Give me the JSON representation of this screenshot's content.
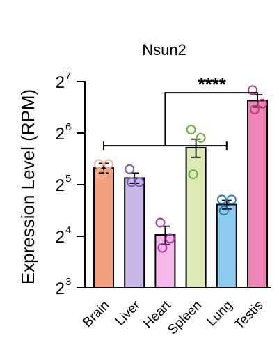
{
  "chart_data": {
    "type": "bar",
    "title": "Nsun2",
    "ylabel": "Expression Level (RPM)",
    "xlabel": "",
    "y_scale": "log2",
    "ylim": [
      8,
      128
    ],
    "y_ticks": [
      {
        "value": 8,
        "base": "2",
        "exp": "3"
      },
      {
        "value": 16,
        "base": "2",
        "exp": "4"
      },
      {
        "value": 32,
        "base": "2",
        "exp": "5"
      },
      {
        "value": 64,
        "base": "2",
        "exp": "6"
      },
      {
        "value": 128,
        "base": "2",
        "exp": "7"
      }
    ],
    "categories": [
      "Brain",
      "Liver",
      "Heart",
      "Spleen",
      "Lung",
      "Testis"
    ],
    "values": [
      40.0,
      35.0,
      16.3,
      52.6,
      24.5,
      99.0
    ],
    "errors": [
      2.6,
      2.4,
      2.0,
      6.4,
      1.4,
      8.1
    ],
    "points": [
      [
        42.2,
        42.2,
        36.8
      ],
      [
        39.4,
        33.1,
        33.1
      ],
      [
        19.2,
        15.5,
        13.7
      ],
      [
        67.0,
        60.0,
        36.8
      ],
      [
        26.2,
        26.2,
        22.6
      ],
      [
        114.0,
        95.0,
        88.0
      ]
    ],
    "colors": [
      "#f1a07d",
      "#cbb7e6",
      "#f4b8ea",
      "#dceab6",
      "#8ccbed",
      "#ef84b7"
    ],
    "point_colors": [
      "#f2b49a",
      "#7b58b8",
      "#b03aa5",
      "#6aae3c",
      "#2d78b7",
      "#c2377e"
    ],
    "significance": {
      "label": "****",
      "bracket": {
        "from": 0,
        "to": 4,
        "y_value": 54
      },
      "target": 5,
      "top_value": 110
    }
  }
}
